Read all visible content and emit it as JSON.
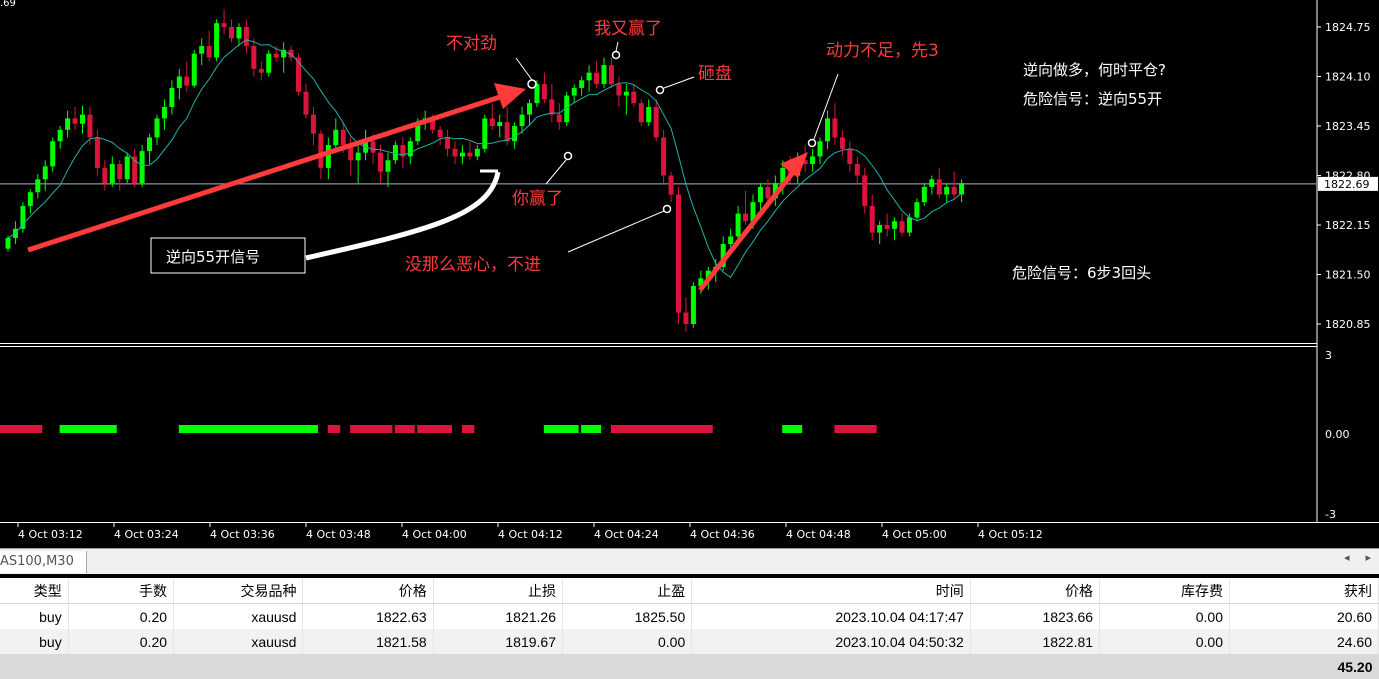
{
  "chart": {
    "symbol_tab": "AS100,M30",
    "top_left_value": ".69",
    "price_axis": [
      "1824.75",
      "1824.10",
      "1823.45",
      "1822.80",
      "1822.15",
      "1821.50",
      "1820.85"
    ],
    "current_price": "1822.69",
    "indicator_axis": [
      "3",
      "0.00",
      "-3"
    ],
    "time_labels": [
      "4 Oct 03:12",
      "4 Oct 03:24",
      "4 Oct 03:36",
      "4 Oct 03:48",
      "4 Oct 04:00",
      "4 Oct 04:12",
      "4 Oct 04:24",
      "4 Oct 04:36",
      "4 Oct 04:48",
      "4 Oct 05:00",
      "4 Oct 05:12"
    ],
    "colors": {
      "bull": "#00ff00",
      "bear": "#dc143c",
      "ma": "#20b2aa",
      "annot": "#ff3b3b",
      "price_line": "#a9b4c8"
    },
    "annotations": {
      "bu_dui_jin": "不对劲",
      "wo_you_ying": "我又赢了",
      "za_pan": "砸盘",
      "dong_li": "动力不足，先3",
      "ni_ying": "你赢了",
      "mei_na_me": "没那么恶心，不进",
      "signal_box": "逆向55开信号",
      "note1": "逆向做多，何时平仓?",
      "note2": "危险信号：逆向55开",
      "note3": "危险信号：6步3回头"
    }
  },
  "chart_data": {
    "type": "candlestick",
    "ylim": [
      1820.65,
      1825.0
    ],
    "candles": [
      [
        1821.84,
        1822.01,
        1821.8,
        1821.98
      ],
      [
        1821.98,
        1822.2,
        1821.9,
        1822.1
      ],
      [
        1822.1,
        1822.45,
        1822.05,
        1822.4
      ],
      [
        1822.4,
        1822.62,
        1822.3,
        1822.58
      ],
      [
        1822.58,
        1822.82,
        1822.5,
        1822.75
      ],
      [
        1822.75,
        1823.0,
        1822.6,
        1822.92
      ],
      [
        1822.92,
        1823.3,
        1822.85,
        1823.25
      ],
      [
        1823.25,
        1823.45,
        1823.15,
        1823.4
      ],
      [
        1823.4,
        1823.65,
        1823.3,
        1823.55
      ],
      [
        1823.55,
        1823.7,
        1823.4,
        1823.48
      ],
      [
        1823.48,
        1823.72,
        1823.35,
        1823.6
      ],
      [
        1823.6,
        1823.7,
        1823.2,
        1823.3
      ],
      [
        1823.3,
        1823.4,
        1822.8,
        1822.9
      ],
      [
        1822.9,
        1823.0,
        1822.6,
        1822.7
      ],
      [
        1822.7,
        1823.05,
        1822.65,
        1822.95
      ],
      [
        1822.95,
        1823.0,
        1822.6,
        1822.75
      ],
      [
        1822.75,
        1823.1,
        1822.7,
        1823.05
      ],
      [
        1823.05,
        1823.15,
        1822.65,
        1822.7
      ],
      [
        1822.7,
        1823.2,
        1822.65,
        1823.12
      ],
      [
        1823.12,
        1823.35,
        1822.95,
        1823.3
      ],
      [
        1823.3,
        1823.6,
        1823.2,
        1823.55
      ],
      [
        1823.55,
        1823.8,
        1823.4,
        1823.7
      ],
      [
        1823.7,
        1824.05,
        1823.6,
        1823.95
      ],
      [
        1823.95,
        1824.2,
        1823.8,
        1824.1
      ],
      [
        1824.1,
        1824.3,
        1823.9,
        1823.98
      ],
      [
        1823.98,
        1824.45,
        1823.95,
        1824.4
      ],
      [
        1824.4,
        1824.6,
        1824.25,
        1824.5
      ],
      [
        1824.5,
        1824.7,
        1824.3,
        1824.35
      ],
      [
        1824.35,
        1824.85,
        1824.3,
        1824.8
      ],
      [
        1824.8,
        1824.98,
        1824.65,
        1824.75
      ],
      [
        1824.75,
        1824.85,
        1824.55,
        1824.6
      ],
      [
        1824.6,
        1824.8,
        1824.5,
        1824.75
      ],
      [
        1824.75,
        1824.85,
        1824.4,
        1824.5
      ],
      [
        1824.5,
        1824.6,
        1824.1,
        1824.2
      ],
      [
        1824.2,
        1824.3,
        1824.05,
        1824.15
      ],
      [
        1824.15,
        1824.45,
        1824.1,
        1824.4
      ],
      [
        1824.4,
        1824.5,
        1824.3,
        1824.35
      ],
      [
        1824.35,
        1824.55,
        1824.15,
        1824.45
      ],
      [
        1824.45,
        1824.5,
        1824.3,
        1824.35
      ],
      [
        1824.35,
        1824.4,
        1823.85,
        1823.9
      ],
      [
        1823.9,
        1824.0,
        1823.55,
        1823.6
      ],
      [
        1823.6,
        1823.7,
        1823.2,
        1823.35
      ],
      [
        1823.35,
        1823.4,
        1822.75,
        1822.9
      ],
      [
        1822.9,
        1823.3,
        1822.75,
        1823.2
      ],
      [
        1823.2,
        1823.55,
        1823.1,
        1823.4
      ],
      [
        1823.4,
        1823.5,
        1823.1,
        1823.2
      ],
      [
        1823.2,
        1823.3,
        1822.8,
        1823.0
      ],
      [
        1823.0,
        1823.25,
        1822.7,
        1823.1
      ],
      [
        1823.1,
        1823.4,
        1823.0,
        1823.25
      ],
      [
        1823.25,
        1823.35,
        1822.95,
        1823.1
      ],
      [
        1823.1,
        1823.2,
        1822.7,
        1822.85
      ],
      [
        1822.85,
        1823.1,
        1822.65,
        1823.0
      ],
      [
        1823.0,
        1823.25,
        1822.95,
        1823.2
      ],
      [
        1823.2,
        1823.3,
        1822.9,
        1823.05
      ],
      [
        1823.05,
        1823.3,
        1822.95,
        1823.25
      ],
      [
        1823.25,
        1823.55,
        1823.2,
        1823.5
      ],
      [
        1823.5,
        1823.65,
        1823.4,
        1823.55
      ],
      [
        1823.55,
        1823.6,
        1823.35,
        1823.4
      ],
      [
        1823.4,
        1823.45,
        1823.2,
        1823.3
      ],
      [
        1823.3,
        1823.4,
        1823.05,
        1823.15
      ],
      [
        1823.15,
        1823.25,
        1822.95,
        1823.05
      ],
      [
        1823.05,
        1823.2,
        1822.95,
        1823.1
      ],
      [
        1823.1,
        1823.25,
        1823.0,
        1823.05
      ],
      [
        1823.05,
        1823.2,
        1823.0,
        1823.15
      ],
      [
        1823.15,
        1823.6,
        1823.1,
        1823.55
      ],
      [
        1823.55,
        1823.75,
        1823.4,
        1823.45
      ],
      [
        1823.45,
        1823.6,
        1823.3,
        1823.5
      ],
      [
        1823.5,
        1823.7,
        1823.2,
        1823.25
      ],
      [
        1823.25,
        1823.5,
        1823.15,
        1823.45
      ],
      [
        1823.45,
        1823.7,
        1823.35,
        1823.6
      ],
      [
        1823.6,
        1823.8,
        1823.45,
        1823.75
      ],
      [
        1823.75,
        1824.05,
        1823.7,
        1824.0
      ],
      [
        1824.0,
        1824.15,
        1823.75,
        1823.8
      ],
      [
        1823.8,
        1824.0,
        1823.5,
        1823.6
      ],
      [
        1823.6,
        1823.75,
        1823.4,
        1823.5
      ],
      [
        1823.5,
        1823.9,
        1823.45,
        1823.85
      ],
      [
        1823.85,
        1824.0,
        1823.75,
        1823.95
      ],
      [
        1823.95,
        1824.1,
        1823.85,
        1824.05
      ],
      [
        1824.05,
        1824.25,
        1823.9,
        1824.15
      ],
      [
        1824.15,
        1824.3,
        1823.95,
        1824.0
      ],
      [
        1824.0,
        1824.35,
        1823.95,
        1824.25
      ],
      [
        1824.25,
        1824.35,
        1823.95,
        1824.0
      ],
      [
        1824.0,
        1824.1,
        1823.7,
        1823.85
      ],
      [
        1823.85,
        1824.0,
        1823.6,
        1823.9
      ],
      [
        1823.9,
        1824.0,
        1823.7,
        1823.75
      ],
      [
        1823.75,
        1823.8,
        1823.45,
        1823.5
      ],
      [
        1823.5,
        1823.8,
        1823.45,
        1823.7
      ],
      [
        1823.7,
        1823.8,
        1823.25,
        1823.3
      ],
      [
        1823.3,
        1823.4,
        1822.7,
        1822.8
      ],
      [
        1822.8,
        1822.85,
        1822.45,
        1822.55
      ],
      [
        1822.55,
        1822.65,
        1820.85,
        1821.0
      ],
      [
        1821.0,
        1821.2,
        1820.75,
        1820.85
      ],
      [
        1820.85,
        1821.4,
        1820.8,
        1821.35
      ],
      [
        1821.35,
        1821.55,
        1821.25,
        1821.45
      ],
      [
        1821.45,
        1821.6,
        1821.3,
        1821.55
      ],
      [
        1821.55,
        1821.7,
        1821.4,
        1821.6
      ],
      [
        1821.6,
        1822.0,
        1821.55,
        1821.9
      ],
      [
        1821.9,
        1822.1,
        1821.8,
        1822.0
      ],
      [
        1822.0,
        1822.4,
        1821.95,
        1822.3
      ],
      [
        1822.3,
        1822.6,
        1822.15,
        1822.2
      ],
      [
        1822.2,
        1822.55,
        1822.1,
        1822.45
      ],
      [
        1822.45,
        1822.7,
        1822.35,
        1822.65
      ],
      [
        1822.65,
        1822.75,
        1822.45,
        1822.5
      ],
      [
        1822.5,
        1822.8,
        1822.4,
        1822.7
      ],
      [
        1822.7,
        1823.0,
        1822.55,
        1822.9
      ],
      [
        1822.9,
        1823.05,
        1822.7,
        1822.8
      ],
      [
        1822.8,
        1823.1,
        1822.7,
        1823.0
      ],
      [
        1823.0,
        1823.2,
        1822.85,
        1822.95
      ],
      [
        1822.95,
        1823.15,
        1822.85,
        1823.05
      ],
      [
        1823.05,
        1823.3,
        1822.95,
        1823.25
      ],
      [
        1823.25,
        1823.65,
        1823.15,
        1823.55
      ],
      [
        1823.55,
        1823.75,
        1823.2,
        1823.3
      ],
      [
        1823.3,
        1823.4,
        1823.05,
        1823.15
      ],
      [
        1823.15,
        1823.25,
        1822.85,
        1822.95
      ],
      [
        1822.95,
        1823.05,
        1822.7,
        1822.8
      ],
      [
        1822.8,
        1822.9,
        1822.3,
        1822.4
      ],
      [
        1822.4,
        1822.55,
        1821.95,
        1822.05
      ],
      [
        1822.05,
        1822.2,
        1821.9,
        1822.15
      ],
      [
        1822.15,
        1822.3,
        1822.0,
        1822.1
      ],
      [
        1822.1,
        1822.25,
        1821.95,
        1822.2
      ],
      [
        1822.2,
        1822.3,
        1822.0,
        1822.05
      ],
      [
        1822.05,
        1822.3,
        1822.0,
        1822.25
      ],
      [
        1822.25,
        1822.5,
        1822.2,
        1822.45
      ],
      [
        1822.45,
        1822.7,
        1822.4,
        1822.65
      ],
      [
        1822.65,
        1822.8,
        1822.55,
        1822.75
      ],
      [
        1822.75,
        1822.9,
        1822.5,
        1822.55
      ],
      [
        1822.55,
        1822.7,
        1822.45,
        1822.65
      ],
      [
        1822.65,
        1822.85,
        1822.5,
        1822.55
      ],
      [
        1822.55,
        1822.75,
        1822.45,
        1822.7
      ]
    ],
    "indicator_blocks": [
      {
        "color": "bear",
        "from": 0,
        "to": 5
      },
      {
        "color": "bull",
        "from": 8,
        "to": 15
      },
      {
        "color": "bull",
        "from": 24,
        "to": 42
      },
      {
        "color": "bear",
        "from": 44,
        "to": 45
      },
      {
        "color": "bear",
        "from": 47,
        "to": 52
      },
      {
        "color": "bear",
        "from": 53,
        "to": 55
      },
      {
        "color": "bear",
        "from": 56,
        "to": 60
      },
      {
        "color": "bear",
        "from": 62,
        "to": 63
      },
      {
        "color": "bull",
        "from": 73,
        "to": 77
      },
      {
        "color": "bull",
        "from": 78,
        "to": 80
      },
      {
        "color": "bear",
        "from": 82,
        "to": 95
      },
      {
        "color": "bull",
        "from": 105,
        "to": 107
      },
      {
        "color": "bear",
        "from": 112,
        "to": 117
      }
    ]
  },
  "table": {
    "headers": [
      "类型",
      "手数",
      "交易品种",
      "价格",
      "止损",
      "止盈",
      "时间",
      "价格",
      "库存费",
      "获利"
    ],
    "rows": [
      [
        "buy",
        "0.20",
        "xauusd",
        "1822.63",
        "1821.26",
        "1825.50",
        "2023.10.04 04:17:47",
        "1823.66",
        "0.00",
        "20.60"
      ],
      [
        "buy",
        "0.20",
        "xauusd",
        "1821.58",
        "1819.67",
        "0.00",
        "2023.10.04 04:50:32",
        "1822.81",
        "0.00",
        "24.60"
      ]
    ],
    "total": "45.20"
  }
}
